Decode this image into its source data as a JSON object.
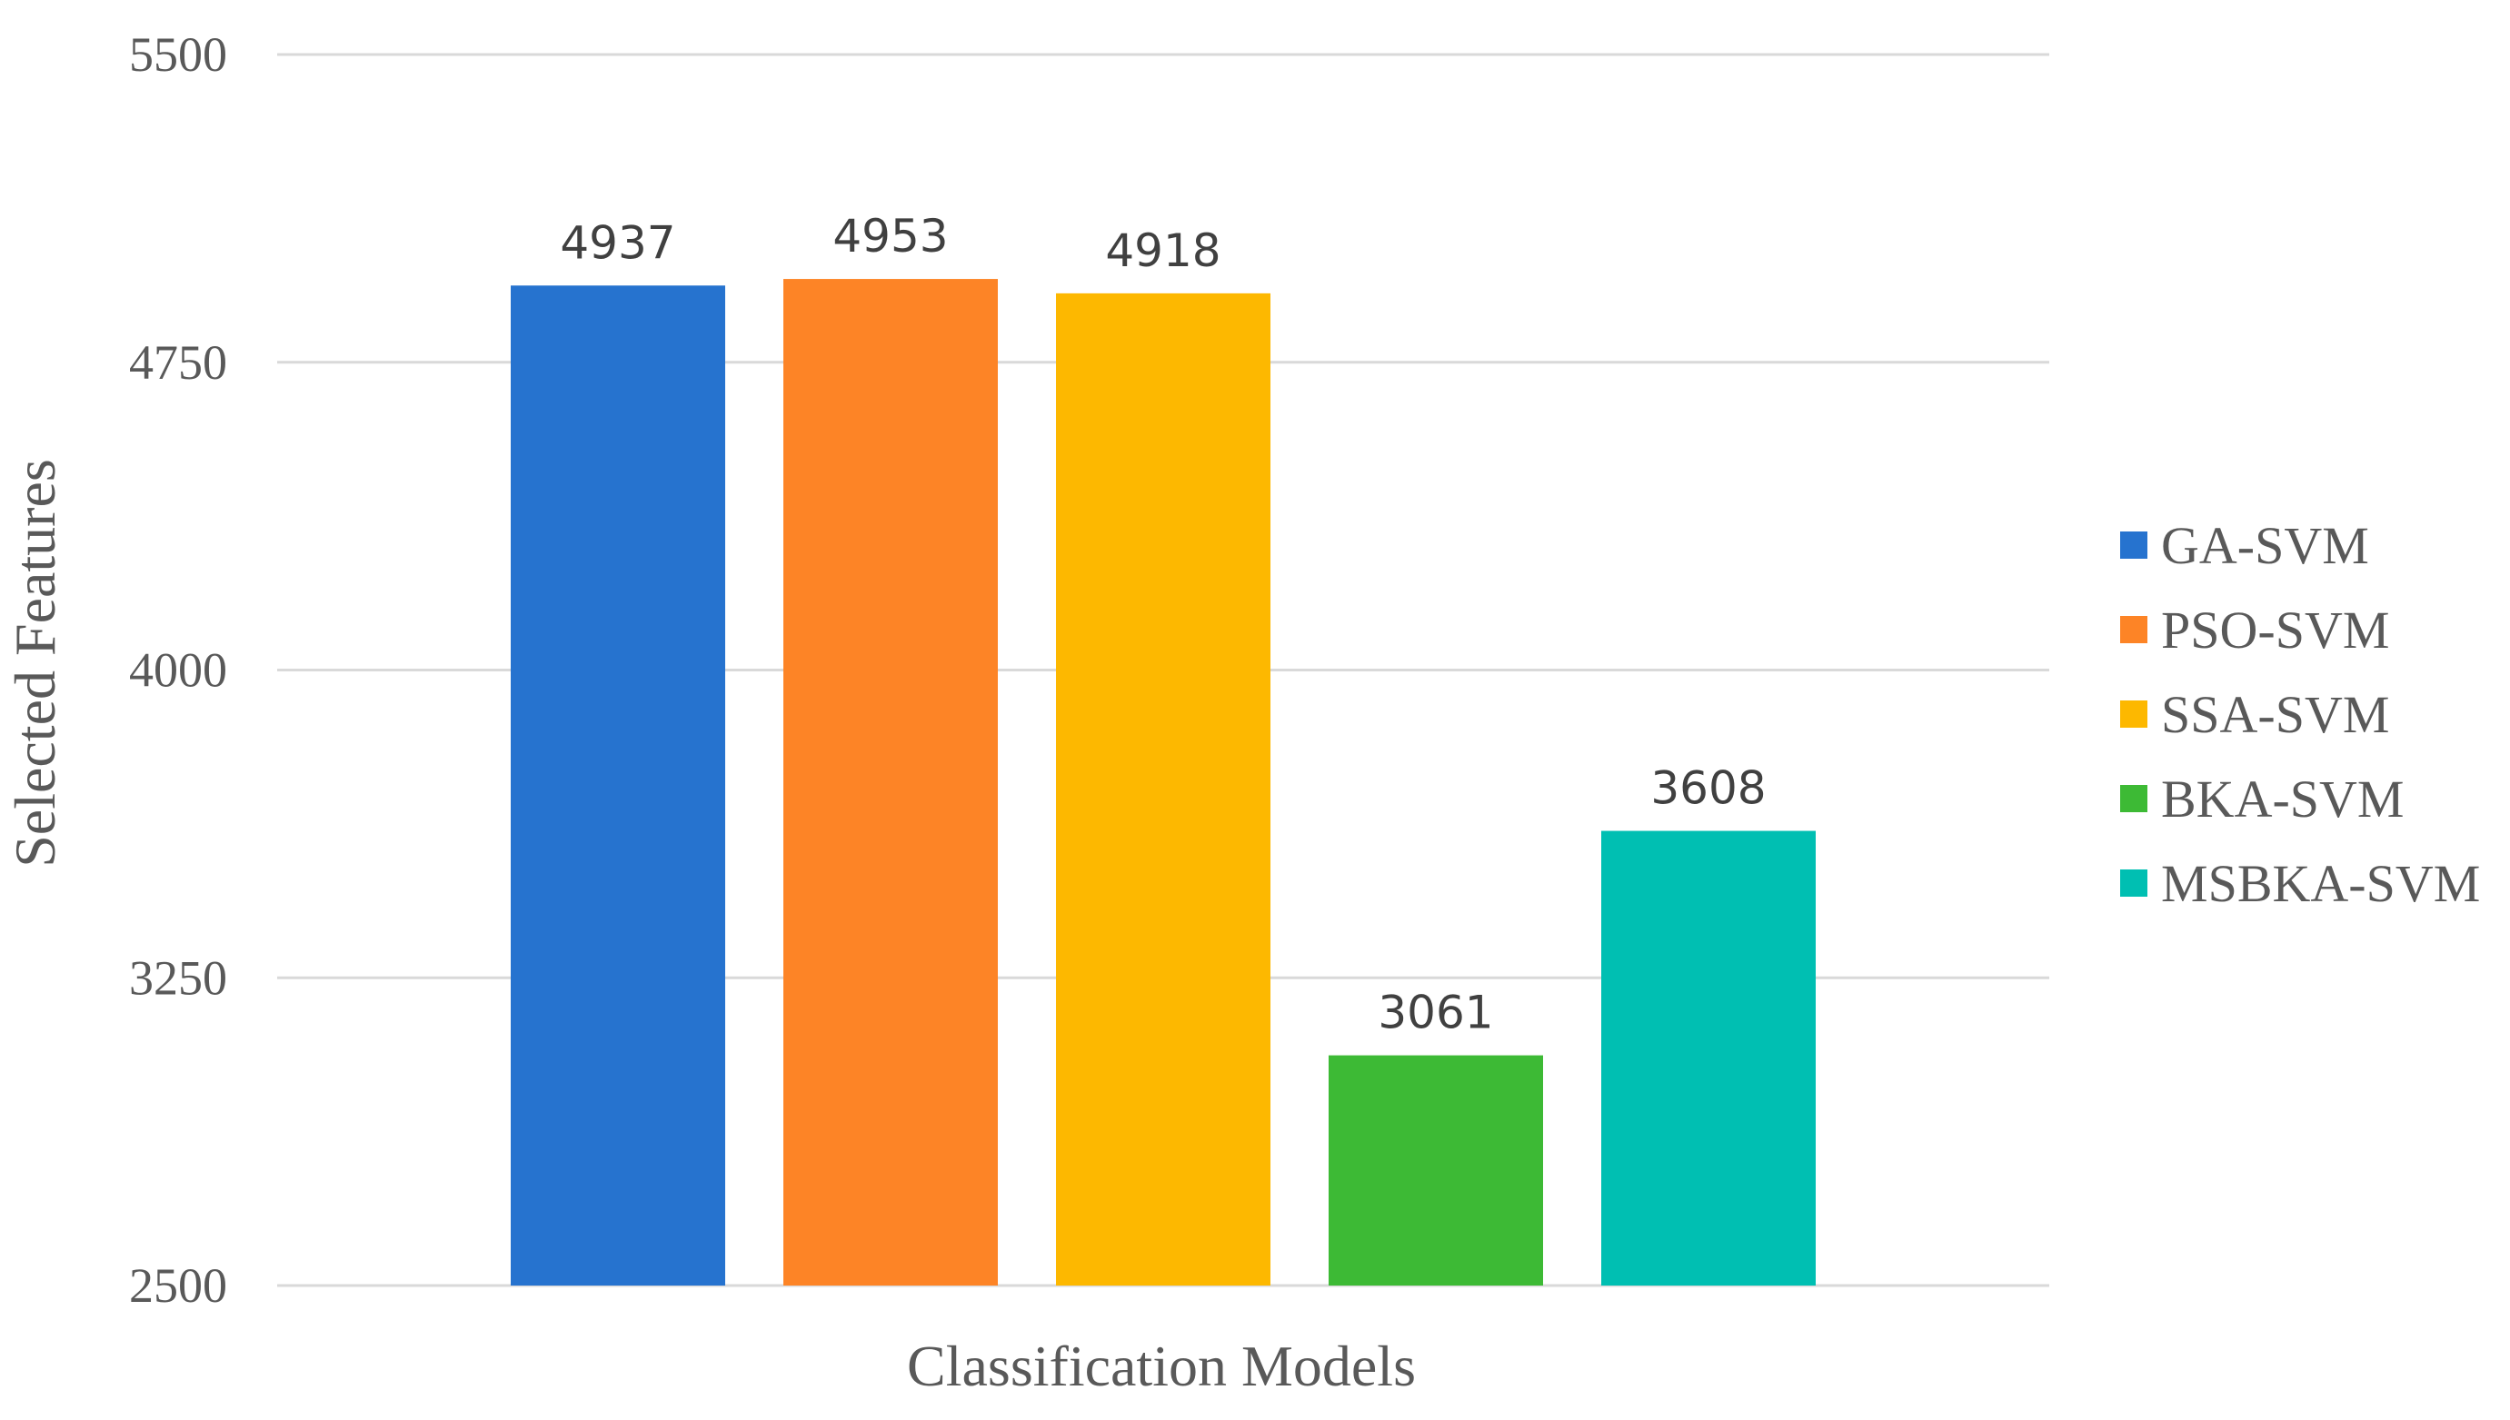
{
  "chart_data": {
    "type": "bar",
    "xlabel": "Classification Models",
    "ylabel": "Selected Features",
    "ylim": [
      2500,
      5500
    ],
    "yticks": [
      2500,
      3250,
      4000,
      4750,
      5500
    ],
    "grid": true,
    "legend_position": "right",
    "series": [
      {
        "name": "GA-SVM",
        "values": [
          4937
        ],
        "color": "#2673CF"
      },
      {
        "name": "PSO-SVM",
        "values": [
          4953
        ],
        "color": "#FD8426"
      },
      {
        "name": "SSA-SVM",
        "values": [
          4918
        ],
        "color": "#FDB800"
      },
      {
        "name": "BKA-SVM",
        "values": [
          3061
        ],
        "color": "#3DBA35"
      },
      {
        "name": "MSBKA-SVM",
        "values": [
          3608
        ],
        "color": "#00BFB2"
      }
    ]
  }
}
